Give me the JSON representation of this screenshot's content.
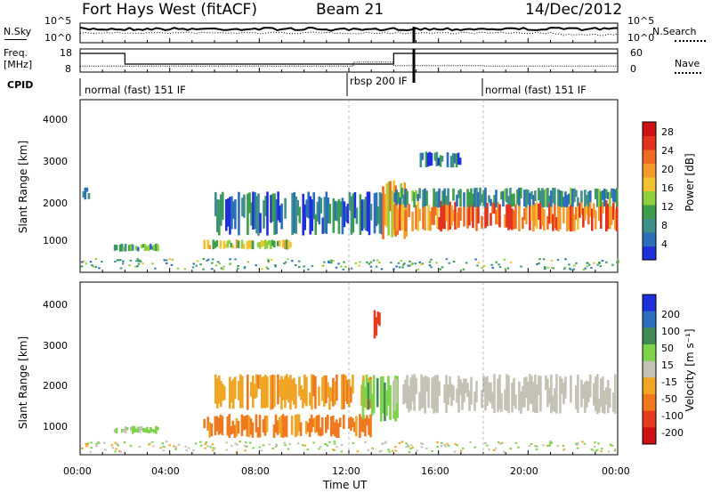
{
  "header": {
    "site": "Fort Hays West (fitACF)",
    "beam": "Beam 21",
    "date": "14/Dec/2012"
  },
  "noise_panel": {
    "left_label": "N.Sky",
    "right_label": "N.Search",
    "left_ticks": [
      "10^5",
      "10^0"
    ],
    "right_ticks": [
      "10^5",
      "10^0"
    ]
  },
  "freq_panel": {
    "left_label_line1": "Freq.",
    "left_label_line2": "[MHz]",
    "left_ticks": [
      "18",
      "8"
    ],
    "right_ticks": [
      "60",
      "0"
    ],
    "right_label": "Nave"
  },
  "cpid_panel": {
    "label": "CPID",
    "modes": [
      "normal (fast) 151 IF",
      "rbsp 200 IF",
      "normal (fast) 151 IF"
    ]
  },
  "x_axis": {
    "label": "Time UT",
    "ticks": [
      "00:00",
      "04:00",
      "08:00",
      "12:00",
      "16:00",
      "20:00",
      "00:00"
    ]
  },
  "power_panel": {
    "ylabel": "Slant Range [km]",
    "yticks": [
      "4000",
      "3000",
      "2000",
      "1000"
    ],
    "colorbar_label": "Power [dB]",
    "colorbar_ticks": [
      "28",
      "24",
      "20",
      "16",
      "12",
      "8",
      "4"
    ],
    "colorbar_colors": [
      "#1f2fdc",
      "#2a6fb8",
      "#3f8f8a",
      "#3c9e4a",
      "#8fcf3e",
      "#f2c230",
      "#f39a2a",
      "#ef6a22",
      "#e3331e",
      "#cc1212"
    ]
  },
  "velocity_panel": {
    "ylabel": "Slant Range [km]",
    "yticks": [
      "4000",
      "3000",
      "2000",
      "1000"
    ],
    "colorbar_label": "Velocity [m s⁻¹]",
    "colorbar_ticks": [
      "200",
      "100",
      "50",
      "15",
      "-15",
      "-50",
      "-100",
      "-200"
    ],
    "colorbar_colors": [
      "#1f2fdc",
      "#2f6fc0",
      "#3f8a55",
      "#7ed34a",
      "#c4c2b4",
      "#f1a524",
      "#f0791f",
      "#e83a1c",
      "#cc1212"
    ]
  },
  "chart_data": {
    "type": "heatmap",
    "x_unit": "hours UT",
    "xlim": [
      0,
      24
    ],
    "ylim_km": [
      180,
      4500
    ],
    "freq_series": [
      {
        "t0": 0.0,
        "t1": 2.0,
        "mhz": 17
      },
      {
        "t0": 2.0,
        "t1": 14.0,
        "mhz": 11
      },
      {
        "t0": 14.0,
        "t1": 24.0,
        "mhz": 17
      }
    ],
    "nave_series": [
      {
        "t0": 0.0,
        "t1": 12.2,
        "nave": 17
      },
      {
        "t0": 12.2,
        "t1": 14.0,
        "nave": 28
      },
      {
        "t0": 14.0,
        "t1": 18.0,
        "nave": 18
      },
      {
        "t0": 18.0,
        "t1": 24.0,
        "nave": 17
      }
    ],
    "cpid_segments": [
      {
        "t0": 0.0,
        "t1": 12.0,
        "mode": "normal (fast) 151 IF"
      },
      {
        "t0": 12.0,
        "t1": 18.0,
        "mode": "rbsp 200 IF"
      },
      {
        "t0": 18.0,
        "t1": 24.0,
        "mode": "normal (fast) 151 IF"
      }
    ],
    "power_regions": [
      {
        "name": "early-echo",
        "t0": 0.1,
        "t1": 0.5,
        "r0": 2000,
        "r1": 2300,
        "db": 6
      },
      {
        "name": "morning-echo",
        "t0": 1.5,
        "t1": 3.5,
        "r0": 700,
        "r1": 900,
        "db": 10
      },
      {
        "name": "ionospheric-band",
        "t0": 5.5,
        "t1": 9.5,
        "r0": 750,
        "r1": 1000,
        "db": 14
      },
      {
        "name": "rising-arc",
        "t0": 6.0,
        "t1": 13.5,
        "r0": 1100,
        "r1": 2200,
        "db": 6
      },
      {
        "name": "midnight-onset",
        "t0": 13.4,
        "t1": 14.6,
        "r0": 1000,
        "r1": 2500,
        "db": 18
      },
      {
        "name": "main-band",
        "t0": 14.0,
        "t1": 24.0,
        "r0": 1200,
        "r1": 2000,
        "db": 22
      },
      {
        "name": "upper-band",
        "t0": 14.0,
        "t1": 24.0,
        "r0": 1800,
        "r1": 2300,
        "db": 8
      },
      {
        "name": "far-echo",
        "t0": 15.0,
        "t1": 17.0,
        "r0": 2800,
        "r1": 3200,
        "db": 6
      }
    ],
    "velocity_regions": [
      {
        "name": "morning-echo",
        "t0": 1.5,
        "t1": 3.5,
        "r0": 700,
        "r1": 900,
        "vel": 20
      },
      {
        "name": "band-west",
        "t0": 5.5,
        "t1": 13.0,
        "r0": 600,
        "r1": 1200,
        "vel": -60
      },
      {
        "name": "arc",
        "t0": 6.0,
        "t1": 13.0,
        "r0": 1300,
        "r1": 2200,
        "vel": -40
      },
      {
        "name": "onset",
        "t0": 12.5,
        "t1": 14.2,
        "r0": 1000,
        "r1": 2200,
        "vel": 40
      },
      {
        "name": "main",
        "t0": 14.0,
        "t1": 24.0,
        "r0": 1200,
        "r1": 2200,
        "vel": 0
      },
      {
        "name": "red-spot",
        "t0": 13.1,
        "t1": 13.4,
        "r0": 3000,
        "r1": 3800,
        "vel": -180
      }
    ]
  }
}
